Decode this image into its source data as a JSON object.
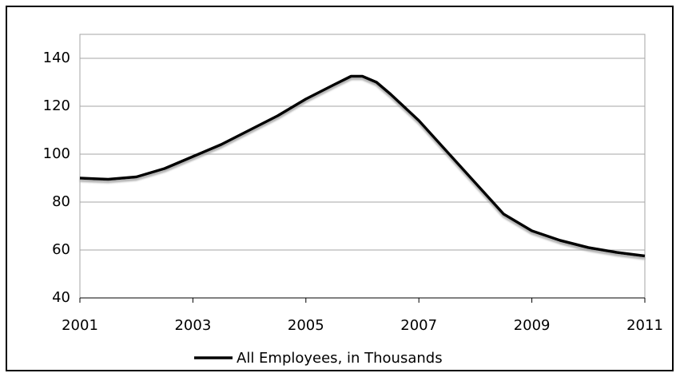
{
  "chart_data": {
    "type": "line",
    "x": [
      2001,
      2001.5,
      2002,
      2002.5,
      2003,
      2003.5,
      2004,
      2004.5,
      2005,
      2005.5,
      2005.8,
      2006,
      2006.25,
      2006.5,
      2007,
      2007.5,
      2008,
      2008.5,
      2009,
      2009.5,
      2010,
      2010.5,
      2011
    ],
    "series": [
      {
        "name": "All Employees, in Thousands",
        "color": "#000000",
        "values": [
          90,
          89.5,
          90.5,
          94,
          99,
          104,
          110,
          116,
          123,
          129,
          132.5,
          132.5,
          130,
          125,
          114,
          101,
          88,
          75,
          68,
          64,
          61,
          59,
          57.5
        ]
      }
    ],
    "xlim": [
      2001,
      2011
    ],
    "xticks": [
      2001,
      2003,
      2005,
      2007,
      2009,
      2011
    ],
    "ylim": [
      40,
      150
    ],
    "yticks": [
      40,
      60,
      80,
      100,
      120,
      140
    ],
    "grid": true,
    "legend": "bottom"
  }
}
